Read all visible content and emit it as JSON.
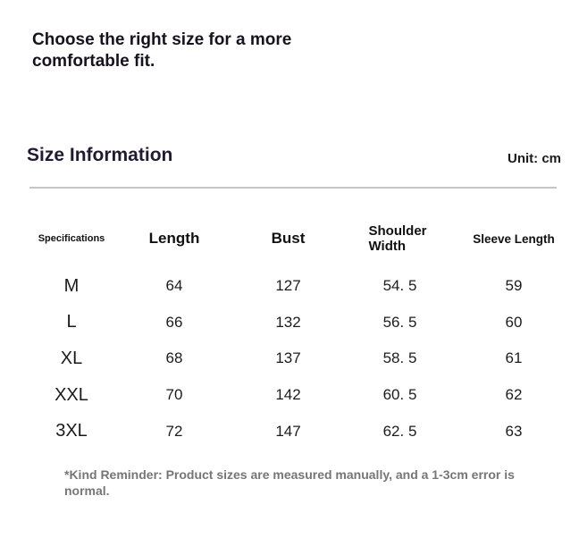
{
  "intro": {
    "heading": "Choose the right size for a more comfortable fit."
  },
  "section": {
    "title": "Size Information",
    "unit_label": "Unit: cm"
  },
  "table": {
    "columns": [
      {
        "label": "Specifications"
      },
      {
        "label": "Length"
      },
      {
        "label": "Bust"
      },
      {
        "label": "Shoulder Width"
      },
      {
        "label": "Sleeve Length"
      }
    ],
    "rows": [
      {
        "size": "M",
        "length": "64",
        "bust": "127",
        "shoulder_width": "54. 5",
        "sleeve_length": "59"
      },
      {
        "size": "L",
        "length": "66",
        "bust": "132",
        "shoulder_width": "56. 5",
        "sleeve_length": "60"
      },
      {
        "size": "XL",
        "length": "68",
        "bust": "137",
        "shoulder_width": "58. 5",
        "sleeve_length": "61"
      },
      {
        "size": "XXL",
        "length": "70",
        "bust": "142",
        "shoulder_width": "60. 5",
        "sleeve_length": "62"
      },
      {
        "size": "3XL",
        "length": "72",
        "bust": "147",
        "shoulder_width": "62. 5",
        "sleeve_length": "63"
      }
    ]
  },
  "footer": {
    "note": "*Kind Reminder: Product sizes are measured manually, and a 1-3cm error is normal."
  },
  "colors": {
    "heading_text": "#16121e",
    "section_title_text": "#221a33",
    "divider": "#c6c6c6",
    "note_text": "#767676"
  }
}
